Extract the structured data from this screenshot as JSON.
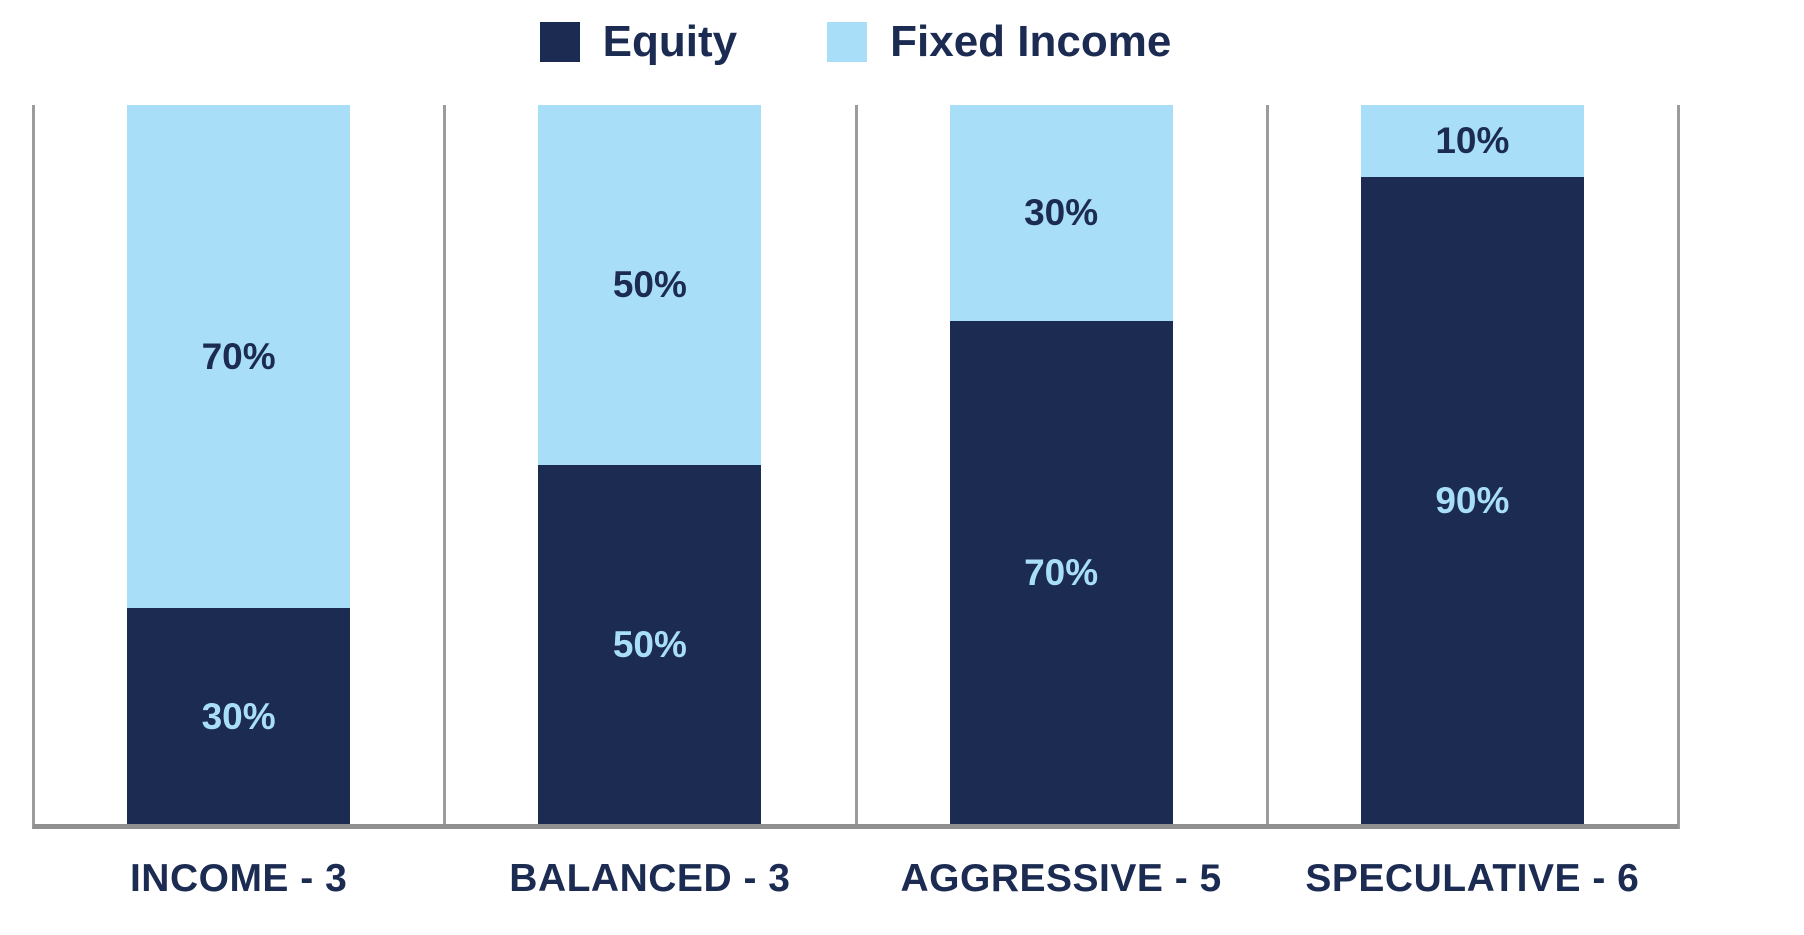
{
  "colors": {
    "equity_navy": "#1B2B52",
    "fixed_income_light_blue": "#A9DEF8",
    "divider_gray": "#9C9C9C",
    "axis_gray": "#909090",
    "text_navy": "#1B2B52"
  },
  "legend": {
    "items": [
      {
        "label": "Equity",
        "color": "#1B2B52"
      },
      {
        "label": "Fixed Income",
        "color": "#A9DEF8"
      }
    ]
  },
  "chart_data": {
    "type": "bar",
    "stacked": true,
    "orientation": "vertical",
    "title": "",
    "xlabel": "",
    "ylabel": "",
    "ylim": [
      0,
      100
    ],
    "grid": "vertical-section-dividers",
    "legend_position": "top-center",
    "value_suffix": "%",
    "categories": [
      "INCOME - 3",
      "BALANCED - 3",
      "AGGRESSIVE - 5",
      "SPECULATIVE - 6"
    ],
    "series": [
      {
        "name": "Equity",
        "stack_position": "bottom",
        "color": "#1B2B52",
        "label_color": "#A9DEF8",
        "values": [
          30,
          50,
          70,
          90
        ],
        "labels": [
          "30%",
          "50%",
          "70%",
          "90%"
        ]
      },
      {
        "name": "Fixed Income",
        "stack_position": "top",
        "color": "#A9DEF8",
        "label_color": "#1B2B52",
        "values": [
          70,
          50,
          30,
          10
        ],
        "labels": [
          "70%",
          "50%",
          "30%",
          "10%"
        ]
      }
    ]
  }
}
